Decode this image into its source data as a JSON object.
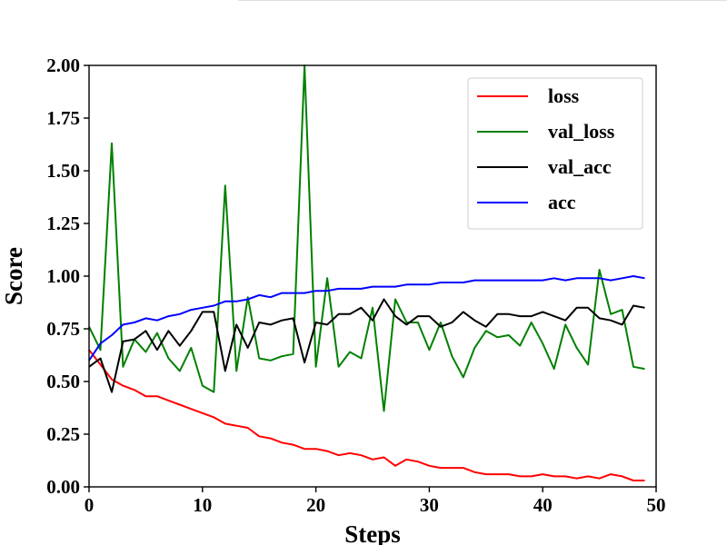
{
  "chart_data": {
    "type": "line",
    "title": "",
    "xlabel": "Steps",
    "ylabel": "Score",
    "xlim": [
      0,
      50
    ],
    "ylim": [
      0,
      2.0
    ],
    "xticks": [
      0,
      10,
      20,
      30,
      40,
      50
    ],
    "xtick_labels": [
      "0",
      "10",
      "20",
      "30",
      "40",
      "50"
    ],
    "yticks": [
      0,
      0.25,
      0.5,
      0.75,
      1.0,
      1.25,
      1.5,
      1.75,
      2.0
    ],
    "ytick_labels": [
      "0.00",
      "0.25",
      "0.50",
      "0.75",
      "1.00",
      "1.25",
      "1.50",
      "1.75",
      "2.00"
    ],
    "grid": false,
    "legend_position": "top-right",
    "x": [
      0,
      1,
      2,
      3,
      4,
      5,
      6,
      7,
      8,
      9,
      10,
      11,
      12,
      13,
      14,
      15,
      16,
      17,
      18,
      19,
      20,
      21,
      22,
      23,
      24,
      25,
      26,
      27,
      28,
      29,
      30,
      31,
      32,
      33,
      34,
      35,
      36,
      37,
      38,
      39,
      40,
      41,
      42,
      43,
      44,
      45,
      46,
      47,
      48,
      49
    ],
    "series": [
      {
        "name": "loss",
        "color": "#ff0000",
        "values": [
          0.65,
          0.58,
          0.51,
          0.48,
          0.46,
          0.43,
          0.43,
          0.41,
          0.39,
          0.37,
          0.35,
          0.33,
          0.3,
          0.29,
          0.28,
          0.24,
          0.23,
          0.21,
          0.2,
          0.18,
          0.18,
          0.17,
          0.15,
          0.16,
          0.15,
          0.13,
          0.14,
          0.1,
          0.13,
          0.12,
          0.1,
          0.09,
          0.09,
          0.09,
          0.07,
          0.06,
          0.06,
          0.06,
          0.05,
          0.05,
          0.06,
          0.05,
          0.05,
          0.04,
          0.05,
          0.04,
          0.06,
          0.05,
          0.03,
          0.03
        ]
      },
      {
        "name": "val_loss",
        "color": "#008000",
        "values": [
          0.76,
          0.65,
          1.63,
          0.57,
          0.7,
          0.64,
          0.73,
          0.61,
          0.55,
          0.66,
          0.48,
          0.45,
          1.43,
          0.55,
          0.9,
          0.61,
          0.6,
          0.62,
          0.63,
          2.0,
          0.57,
          0.99,
          0.57,
          0.64,
          0.61,
          0.85,
          0.36,
          0.89,
          0.78,
          0.78,
          0.65,
          0.78,
          0.62,
          0.52,
          0.66,
          0.74,
          0.71,
          0.72,
          0.67,
          0.78,
          0.68,
          0.56,
          0.77,
          0.66,
          0.58,
          1.03,
          0.82,
          0.84,
          0.57,
          0.56
        ]
      },
      {
        "name": "val_acc",
        "color": "#000000",
        "values": [
          0.57,
          0.61,
          0.45,
          0.69,
          0.7,
          0.74,
          0.65,
          0.74,
          0.67,
          0.74,
          0.83,
          0.83,
          0.55,
          0.77,
          0.66,
          0.78,
          0.77,
          0.79,
          0.8,
          0.59,
          0.78,
          0.77,
          0.82,
          0.82,
          0.85,
          0.79,
          0.89,
          0.81,
          0.77,
          0.81,
          0.81,
          0.76,
          0.78,
          0.83,
          0.79,
          0.76,
          0.82,
          0.82,
          0.81,
          0.81,
          0.83,
          0.81,
          0.79,
          0.85,
          0.85,
          0.8,
          0.79,
          0.77,
          0.86,
          0.85
        ]
      },
      {
        "name": "acc",
        "color": "#0000ff",
        "values": [
          0.6,
          0.68,
          0.72,
          0.77,
          0.78,
          0.8,
          0.79,
          0.81,
          0.82,
          0.84,
          0.85,
          0.86,
          0.88,
          0.88,
          0.89,
          0.91,
          0.9,
          0.92,
          0.92,
          0.92,
          0.93,
          0.93,
          0.94,
          0.94,
          0.94,
          0.95,
          0.95,
          0.95,
          0.96,
          0.96,
          0.96,
          0.97,
          0.97,
          0.97,
          0.98,
          0.98,
          0.98,
          0.98,
          0.98,
          0.98,
          0.98,
          0.99,
          0.98,
          0.99,
          0.99,
          0.99,
          0.98,
          0.99,
          1.0,
          0.99
        ]
      }
    ]
  }
}
